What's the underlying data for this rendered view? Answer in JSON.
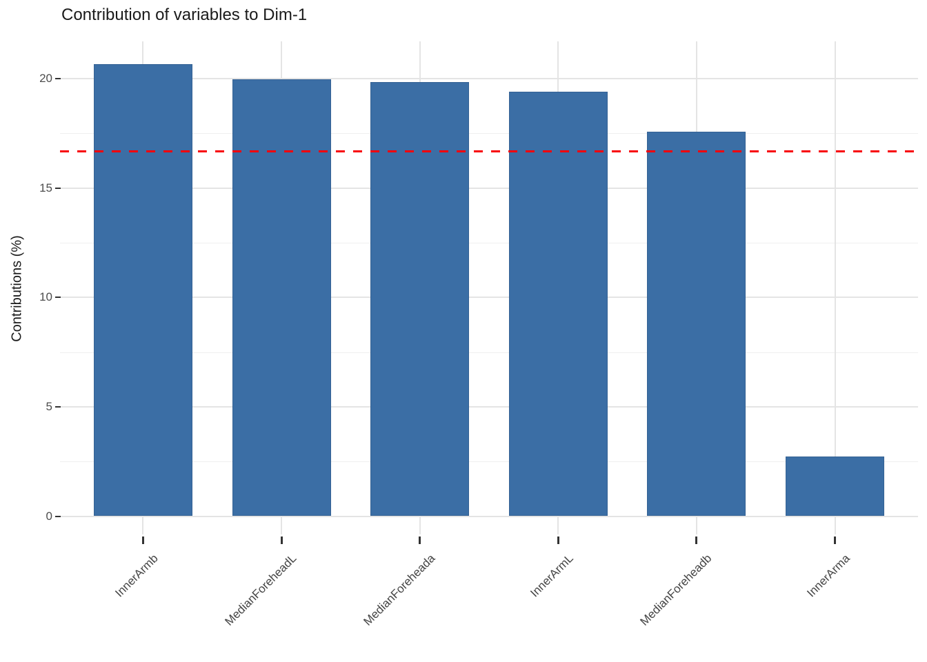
{
  "page": {
    "background": "#ffffff"
  },
  "chart_data": {
    "type": "bar",
    "title": "Contribution of variables to Dim-1",
    "xlabel": "",
    "ylabel": "Contributions (%)",
    "categories": [
      "InnerArmb",
      "MedianForeheadL",
      "MedianForeheada",
      "InnerArmL",
      "MedianForeheadb",
      "InnerArma"
    ],
    "values": [
      20.67,
      19.98,
      19.85,
      19.39,
      17.58,
      2.74
    ],
    "yticks": [
      0,
      5,
      10,
      15,
      20
    ],
    "ytick_labels": [
      "0",
      "5",
      "10",
      "15",
      "20"
    ],
    "ylim": [
      0,
      21.7
    ],
    "grid": true,
    "legend_position": "none",
    "bar_color": "#3b6ea5",
    "x_tick_angle": 45,
    "reference_line": {
      "value": 16.67,
      "color": "#f80008",
      "style": "dashed"
    }
  }
}
